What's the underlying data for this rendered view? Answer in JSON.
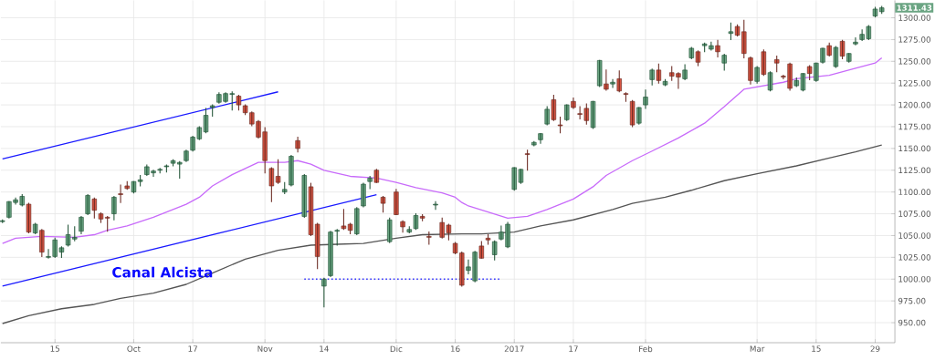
{
  "chart_data": {
    "type": "candlestick",
    "categories": [
      null,
      null,
      null,
      null,
      null,
      null,
      null,
      null,
      "15",
      null,
      null,
      null,
      null,
      null,
      null,
      null,
      null,
      null,
      null,
      null,
      "Oct",
      null,
      null,
      null,
      null,
      null,
      null,
      null,
      null,
      "17",
      null,
      null,
      null,
      null,
      null,
      null,
      null,
      null,
      null,
      null,
      "Nov",
      null,
      null,
      null,
      null,
      null,
      null,
      null,
      null,
      "14",
      null,
      null,
      null,
      null,
      null,
      null,
      null,
      null,
      null,
      null,
      "Dic",
      null,
      null,
      null,
      null,
      null,
      null,
      null,
      null,
      "16",
      null,
      null,
      null,
      null,
      null,
      null,
      null,
      null,
      "2017",
      null,
      null,
      null,
      null,
      null,
      null,
      null,
      null,
      "17",
      null,
      null,
      null,
      null,
      null,
      null,
      null,
      null,
      null,
      null,
      "Feb",
      null,
      null,
      null,
      null,
      null,
      null,
      null,
      null,
      null,
      null,
      null,
      null,
      null,
      null,
      null,
      null,
      "Mar",
      null,
      null,
      null,
      null,
      null,
      null,
      null,
      null,
      "15",
      null,
      null,
      null,
      null,
      null,
      null,
      null,
      null,
      "29",
      null
    ],
    "ohlc": [
      [
        1066,
        1068,
        1065,
        1067
      ],
      [
        1071,
        1089,
        1070,
        1089
      ],
      [
        1088,
        1093,
        1086,
        1091
      ],
      [
        1085,
        1097,
        1084,
        1095
      ],
      [
        1086,
        1087,
        1053,
        1054
      ],
      [
        1053,
        1064,
        1052,
        1063
      ],
      [
        1056,
        1057,
        1026,
        1031
      ],
      [
        1025,
        1034,
        1024,
        1026
      ],
      [
        1026,
        1047,
        1025,
        1045
      ],
      [
        1031,
        1037,
        1025,
        1036
      ],
      [
        1039,
        1062,
        1038,
        1051
      ],
      [
        1046,
        1060,
        1044,
        1048
      ],
      [
        1055,
        1072,
        1052,
        1071
      ],
      [
        1075,
        1097,
        1074,
        1096
      ],
      [
        1092,
        1093,
        1070,
        1079
      ],
      [
        1075,
        1076,
        1065,
        1069
      ],
      [
        1071,
        1072,
        1055,
        1070
      ],
      [
        1075,
        1095,
        1068,
        1094
      ],
      [
        1098,
        1108,
        1088,
        1097
      ],
      [
        1107,
        1112,
        1103,
        1104
      ],
      [
        1100,
        1112,
        1099,
        1112
      ],
      [
        1112,
        1119,
        1107,
        1114
      ],
      [
        1120,
        1131,
        1119,
        1129
      ],
      [
        1122,
        1125,
        1118,
        1124
      ],
      [
        1125,
        1127,
        1122,
        1126
      ],
      [
        1129,
        1131,
        1123,
        1130
      ],
      [
        1133,
        1137,
        1130,
        1136
      ],
      [
        1132,
        1135,
        1116,
        1134
      ],
      [
        1136,
        1148,
        1135,
        1147
      ],
      [
        1148,
        1164,
        1147,
        1163
      ],
      [
        1161,
        1175,
        1160,
        1174
      ],
      [
        1169,
        1196,
        1168,
        1188
      ],
      [
        1197,
        1200,
        1187,
        1199
      ],
      [
        1203,
        1214,
        1202,
        1212
      ],
      [
        1204,
        1214,
        1203,
        1213
      ],
      [
        1212,
        1215,
        1194,
        1213
      ],
      [
        1210,
        1211,
        1194,
        1200
      ],
      [
        1199,
        1200,
        1189,
        1191
      ],
      [
        1191,
        1192,
        1176,
        1178
      ],
      [
        1181,
        1182,
        1162,
        1163
      ],
      [
        1169,
        1174,
        1122,
        1136
      ],
      [
        1127,
        1128,
        1089,
        1107
      ],
      [
        1118,
        1137,
        1110,
        1111
      ],
      [
        1100,
        1111,
        1098,
        1103
      ],
      [
        1108,
        1142,
        1107,
        1141
      ],
      [
        1159,
        1163,
        1146,
        1150
      ],
      [
        1072,
        1120,
        1071,
        1119
      ],
      [
        1106,
        1110,
        1050,
        1051
      ],
      [
        1063,
        1064,
        1012,
        1026
      ],
      [
        992,
        1001,
        968,
        1000
      ],
      [
        1004,
        1055,
        1003,
        1054
      ],
      [
        1055,
        1057,
        1039,
        1056
      ],
      [
        1061,
        1080,
        1057,
        1058
      ],
      [
        1063,
        1064,
        1052,
        1056
      ],
      [
        1052,
        1082,
        1051,
        1081
      ],
      [
        1084,
        1110,
        1083,
        1109
      ],
      [
        1112,
        1118,
        1104,
        1116
      ],
      [
        1125,
        1126,
        1111,
        1111
      ],
      [
        1094,
        1095,
        1077,
        1087
      ],
      [
        1043,
        1070,
        1042,
        1068
      ],
      [
        1100,
        1103,
        1074,
        1074
      ],
      [
        1066,
        1067,
        1054,
        1060
      ],
      [
        1054,
        1060,
        1053,
        1057
      ],
      [
        1058,
        1075,
        1057,
        1073
      ],
      [
        1072,
        1074,
        1067,
        1070
      ],
      [
        1049,
        1054,
        1040,
        1048
      ],
      [
        1085,
        1089,
        1080,
        1086
      ],
      [
        1065,
        1070,
        1047,
        1048
      ],
      [
        1062,
        1063,
        1045,
        1053
      ],
      [
        1041,
        1042,
        1029,
        1030
      ],
      [
        1030,
        1031,
        992,
        993
      ],
      [
        1010,
        1022,
        1006,
        1014
      ],
      [
        998,
        1032,
        997,
        1031
      ],
      [
        1038,
        1043,
        1024,
        1024
      ],
      [
        1047,
        1051,
        1040,
        1045
      ],
      [
        1028,
        1044,
        1022,
        1043
      ],
      [
        1046,
        1061,
        1045,
        1054
      ],
      [
        1037,
        1065,
        1036,
        1063
      ],
      [
        1103,
        1128,
        1102,
        1128
      ],
      [
        1111,
        1126,
        1110,
        1126
      ],
      [
        1144,
        1148,
        1125,
        1143
      ],
      [
        1154,
        1158,
        1153,
        1157
      ],
      [
        1160,
        1167,
        1156,
        1167
      ],
      [
        1178,
        1198,
        1177,
        1195
      ],
      [
        1206,
        1211,
        1182,
        1183
      ],
      [
        1177,
        1186,
        1168,
        1176
      ],
      [
        1183,
        1200,
        1182,
        1200
      ],
      [
        1204,
        1208,
        1196,
        1197
      ],
      [
        1190,
        1198,
        1184,
        1189
      ],
      [
        1196,
        1201,
        1178,
        1182
      ],
      [
        1174,
        1204,
        1173,
        1204
      ],
      [
        1222,
        1251,
        1221,
        1251
      ],
      [
        1224,
        1240,
        1217,
        1218
      ],
      [
        1224,
        1229,
        1220,
        1226
      ],
      [
        1230,
        1239,
        1215,
        1216
      ],
      [
        1213,
        1214,
        1204,
        1212
      ],
      [
        1204,
        1205,
        1175,
        1177
      ],
      [
        1179,
        1197,
        1178,
        1197
      ],
      [
        1200,
        1217,
        1196,
        1209
      ],
      [
        1229,
        1241,
        1223,
        1240
      ],
      [
        1240,
        1247,
        1225,
        1228
      ],
      [
        1223,
        1229,
        1222,
        1227
      ],
      [
        1237,
        1244,
        1228,
        1233
      ],
      [
        1236,
        1237,
        1219,
        1232
      ],
      [
        1230,
        1246,
        1229,
        1240
      ],
      [
        1254,
        1266,
        1253,
        1265
      ],
      [
        1261,
        1262,
        1245,
        1249
      ],
      [
        1268,
        1271,
        1261,
        1270
      ],
      [
        1264,
        1272,
        1263,
        1268
      ],
      [
        1268,
        1274,
        1255,
        1261
      ],
      [
        1248,
        1258,
        1240,
        1257
      ],
      [
        1282,
        1294,
        1275,
        1284
      ],
      [
        1290,
        1292,
        1279,
        1280
      ],
      [
        1284,
        1297,
        1254,
        1259
      ],
      [
        1254,
        1255,
        1224,
        1228
      ],
      [
        1227,
        1244,
        1225,
        1243
      ],
      [
        1261,
        1263,
        1234,
        1235
      ],
      [
        1217,
        1238,
        1216,
        1237
      ],
      [
        1252,
        1256,
        1238,
        1248
      ],
      [
        1233,
        1234,
        1230,
        1232
      ],
      [
        1247,
        1248,
        1217,
        1219
      ],
      [
        1222,
        1231,
        1221,
        1228
      ],
      [
        1217,
        1236,
        1216,
        1236
      ],
      [
        1244,
        1245,
        1229,
        1236
      ],
      [
        1228,
        1248,
        1227,
        1248
      ],
      [
        1249,
        1265,
        1248,
        1265
      ],
      [
        1268,
        1271,
        1256,
        1257
      ],
      [
        1244,
        1267,
        1243,
        1266
      ],
      [
        1273,
        1274,
        1253,
        1256
      ],
      [
        1250,
        1259,
        1249,
        1259
      ],
      [
        1270,
        1277,
        1269,
        1272
      ],
      [
        1275,
        1286,
        1274,
        1281
      ],
      [
        1276,
        1291,
        1275,
        1290
      ],
      [
        1302,
        1312,
        1301,
        1310
      ],
      [
        1307,
        1313,
        1305,
        1311.43
      ]
    ],
    "series": [
      {
        "type": "line",
        "color": "#c86bfa",
        "values": [
          1041,
          null,
          1047,
          null,
          null,
          null,
          1049,
          null,
          null,
          null,
          null,
          1048,
          null,
          null,
          1051,
          null,
          1056,
          null,
          null,
          1061,
          null,
          null,
          null,
          1071,
          null,
          null,
          null,
          null,
          1086,
          null,
          1094,
          null,
          1107,
          null,
          null,
          1120,
          null,
          1127,
          null,
          1134,
          null,
          1134,
          null,
          1134,
          null,
          1136,
          null,
          1132,
          null,
          1125,
          null,
          null,
          null,
          1118,
          null,
          null,
          null,
          1116,
          null,
          null,
          1111,
          null,
          null,
          1105,
          null,
          null,
          null,
          1099,
          null,
          1094,
          1088,
          1084,
          null,
          null,
          1077,
          null,
          null,
          1070,
          null,
          null,
          1072,
          null,
          null,
          1080,
          null,
          null,
          null,
          1092,
          null,
          null,
          1106,
          null,
          1119,
          null,
          null,
          null,
          1136,
          null,
          null,
          1147,
          null,
          null,
          null,
          1162,
          null,
          null,
          null,
          1179,
          null,
          null,
          1198,
          null,
          null,
          1218,
          null,
          null,
          1222,
          null,
          null,
          1226,
          null,
          1230,
          null,
          null,
          null,
          null,
          1234,
          null,
          null,
          null,
          1242,
          null,
          null,
          1248,
          1254
        ]
      },
      {
        "type": "line",
        "color": "#555555",
        "values": [
          949,
          null,
          null,
          null,
          958,
          null,
          null,
          null,
          null,
          966,
          null,
          null,
          null,
          null,
          971,
          null,
          null,
          null,
          978,
          null,
          null,
          null,
          null,
          984,
          null,
          null,
          null,
          null,
          994,
          null,
          null,
          null,
          1007,
          null,
          null,
          null,
          null,
          1023,
          null,
          null,
          null,
          null,
          1033,
          null,
          null,
          null,
          null,
          1039,
          null,
          null,
          null,
          1040,
          null,
          null,
          null,
          1041,
          null,
          null,
          null,
          null,
          1047,
          null,
          null,
          null,
          1051,
          null,
          null,
          null,
          null,
          null,
          1052,
          null,
          null,
          1052,
          null,
          null,
          null,
          null,
          1054,
          null,
          null,
          null,
          1061,
          null,
          null,
          null,
          null,
          1068,
          null,
          null,
          null,
          null,
          null,
          1080,
          null,
          null,
          1087,
          null,
          null,
          null,
          null,
          1094,
          null,
          null,
          null,
          1102,
          null,
          null,
          null,
          null,
          1113,
          null,
          null,
          null,
          null,
          1121,
          null,
          null,
          null,
          null,
          null,
          1130,
          null,
          null,
          null,
          null,
          1139,
          null,
          null,
          null,
          1146,
          null,
          null,
          null,
          1154
        ]
      },
      {
        "type": "line",
        "color": "#1a1aff",
        "values": [
          1138,
          null,
          null,
          null,
          null,
          null,
          null,
          null,
          null,
          null,
          null,
          null,
          null,
          null,
          null,
          null,
          null,
          null,
          null,
          null,
          null,
          null,
          null,
          null,
          null,
          null,
          null,
          null,
          null,
          null,
          null,
          null,
          null,
          null,
          null,
          null,
          null,
          null,
          null,
          null,
          null,
          null,
          1215,
          null,
          null,
          null,
          null,
          null,
          null,
          null,
          null,
          null,
          null,
          null,
          null,
          null,
          null,
          null,
          null,
          null,
          null,
          null,
          null,
          null,
          null,
          null,
          null,
          null,
          null,
          null,
          null,
          null,
          null,
          null,
          null,
          null,
          null,
          null,
          null,
          null,
          null,
          null,
          null,
          null,
          null,
          null,
          null,
          null,
          null,
          null,
          null,
          null,
          null,
          null,
          null,
          null,
          null,
          null,
          null,
          null,
          null,
          null,
          null,
          null,
          null,
          null,
          null,
          null,
          null,
          null,
          null,
          null,
          null,
          null,
          null,
          null,
          null,
          null,
          null,
          null,
          null,
          null,
          null,
          null,
          null,
          null,
          null,
          null,
          null,
          null,
          null,
          null,
          null,
          null,
          null
        ]
      },
      {
        "type": "line",
        "color": "#1a1aff",
        "values": [
          992,
          null,
          null,
          null,
          null,
          null,
          null,
          null,
          null,
          null,
          null,
          null,
          null,
          null,
          null,
          null,
          null,
          null,
          null,
          null,
          null,
          null,
          null,
          null,
          null,
          null,
          null,
          null,
          null,
          null,
          null,
          null,
          null,
          null,
          null,
          null,
          null,
          null,
          null,
          null,
          null,
          null,
          null,
          null,
          null,
          null,
          null,
          null,
          null,
          null,
          null,
          null,
          null,
          null,
          null,
          null,
          null,
          1097,
          null,
          null,
          null,
          null,
          null,
          null,
          null,
          null,
          null,
          null,
          null,
          null,
          null,
          null,
          null,
          null,
          null,
          null,
          null,
          null,
          null,
          null,
          null,
          null,
          null,
          null,
          null,
          null,
          null,
          null,
          null,
          null,
          null,
          null,
          null,
          null,
          null,
          null,
          null,
          null,
          null,
          null,
          null,
          null,
          null,
          null,
          null,
          null,
          null,
          null,
          null,
          null,
          null,
          null,
          null,
          null,
          null,
          null,
          null,
          null,
          null,
          null,
          null,
          null,
          null,
          null,
          null,
          null,
          null,
          null,
          null,
          null,
          null,
          null,
          null,
          null,
          null
        ]
      },
      {
        "type": "line",
        "color": "#3333ff",
        "line_style": "dotted",
        "values": [
          null,
          null,
          null,
          null,
          null,
          null,
          null,
          null,
          null,
          null,
          null,
          null,
          null,
          null,
          null,
          null,
          null,
          null,
          null,
          null,
          null,
          null,
          null,
          null,
          null,
          null,
          null,
          null,
          null,
          null,
          null,
          null,
          null,
          null,
          null,
          null,
          null,
          null,
          null,
          null,
          null,
          null,
          null,
          null,
          null,
          null,
          1000,
          null,
          null,
          null,
          null,
          null,
          null,
          null,
          null,
          null,
          null,
          null,
          null,
          null,
          null,
          null,
          null,
          null,
          null,
          null,
          null,
          null,
          null,
          null,
          null,
          null,
          null,
          null,
          null,
          null,
          1000,
          null,
          null,
          null,
          null,
          null,
          null,
          null,
          null,
          null,
          null,
          null,
          null,
          null,
          null,
          null,
          null,
          null,
          null,
          null,
          null,
          null,
          null,
          null,
          null,
          null,
          null,
          null,
          null,
          null,
          null,
          null,
          null,
          null,
          null,
          null,
          null,
          null,
          null,
          null,
          null,
          null,
          null,
          null,
          null,
          null,
          null,
          null,
          null,
          null,
          null,
          null,
          null,
          null,
          null,
          null,
          null,
          null,
          null
        ]
      }
    ],
    "annotations": [
      "Canal Alcista",
      "1311.43"
    ],
    "ylim": [
      927,
      1320
    ],
    "yticks": [
      {
        "value": 950,
        "label": "950.00"
      },
      {
        "value": 975,
        "label": "975.00"
      },
      {
        "value": 1000,
        "label": "1000.00"
      },
      {
        "value": 1025,
        "label": "1025.00"
      },
      {
        "value": 1050,
        "label": "1050.00"
      },
      {
        "value": 1075,
        "label": "1075.00"
      },
      {
        "value": 1100,
        "label": "1100.00"
      },
      {
        "value": 1125,
        "label": "1125.00"
      },
      {
        "value": 1150,
        "label": "1150.00"
      },
      {
        "value": 1175,
        "label": "1175.00"
      },
      {
        "value": 1200,
        "label": "1200.00"
      },
      {
        "value": 1225,
        "label": "1225.00"
      },
      {
        "value": 1250,
        "label": "1250.00"
      },
      {
        "value": 1275,
        "label": "1275.00"
      },
      {
        "value": 1300,
        "label": "1300.00"
      }
    ],
    "grid": true
  }
}
